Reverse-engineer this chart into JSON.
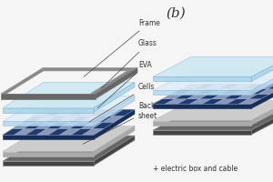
{
  "background_color": "#f5f5f5",
  "title_b": "(b)",
  "subtitle": "+ electric box and cable",
  "labels_a": [
    "Frame",
    "Glass",
    "EVA",
    "Cells",
    "Back-\nsheet"
  ],
  "label_color": "#333333",
  "frame_top_color": "#888888",
  "frame_side_color": "#666666",
  "glass_top_color": "#cce8f2",
  "glass_side_color": "#a8d4e8",
  "eva_top_color": "#ddeef8",
  "eva_side_color": "#b8d8ee",
  "cell_dark_color": "#1e3a6e",
  "cell_light_color": "#8899bb",
  "cell_side_color": "#162d58",
  "backsheet_light_top": "#cccccc",
  "backsheet_light_side": "#aaaaaa",
  "backsheet_dark_top": "#666666",
  "backsheet_dark_side": "#444444"
}
